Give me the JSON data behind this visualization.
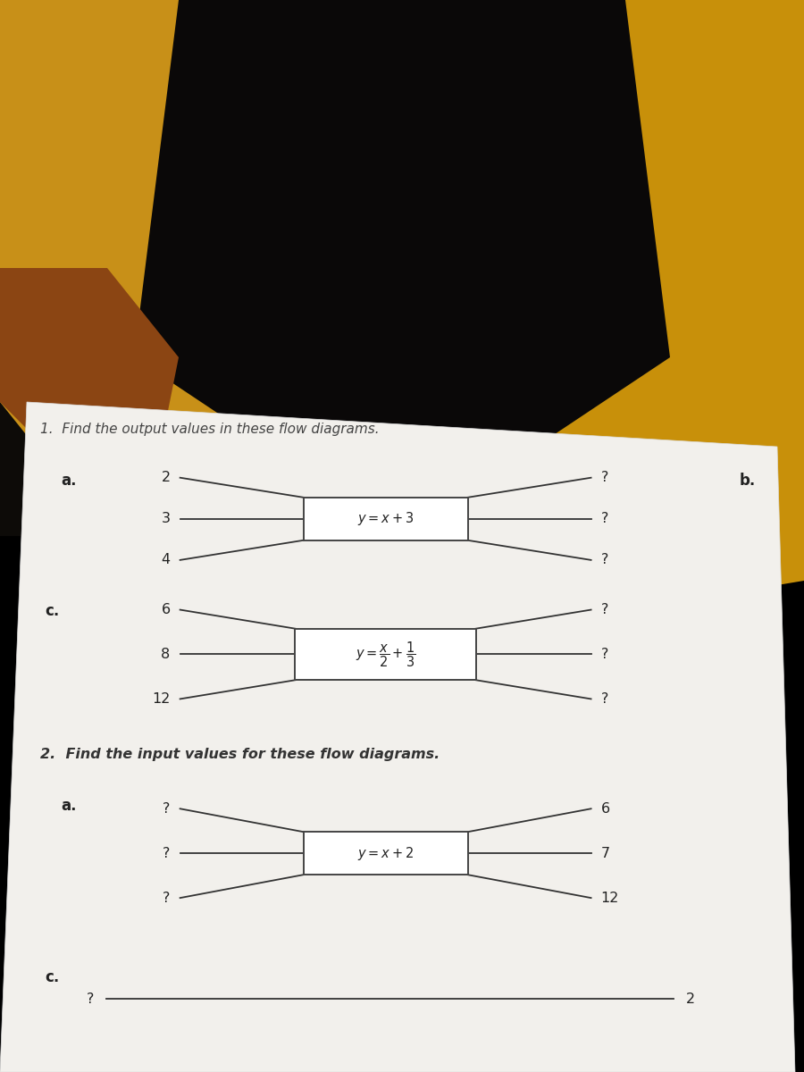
{
  "bg_top_color": "#1a1008",
  "bg_yellow_color": "#d4a020",
  "page_color": "#f0eeea",
  "title1": "1.  Find the output values in these flow diagrams.",
  "title2": "2.  Find the input values for these flow diagrams.",
  "label_b": "b.",
  "diagram_a1": {
    "label": "a.",
    "inputs": [
      "2",
      "3",
      "4"
    ],
    "formula": "$y = x + 3$",
    "outputs": [
      "?",
      "?",
      "?"
    ]
  },
  "diagram_c1": {
    "label": "c.",
    "inputs": [
      "6",
      "8",
      "12"
    ],
    "formula": "$y = \\dfrac{x}{2} + \\dfrac{1}{3}$",
    "outputs": [
      "?",
      "?",
      "?"
    ]
  },
  "diagram_a2": {
    "label": "a.",
    "inputs": [
      "?",
      "?",
      "?"
    ],
    "formula": "$y = x + 2$",
    "outputs": [
      "6",
      "7",
      "12"
    ]
  },
  "diagram_c2": {
    "label": "c.",
    "inputs": [
      "?"
    ],
    "outputs": [
      "2"
    ]
  },
  "text_color": "#222222",
  "line_color": "#333333"
}
